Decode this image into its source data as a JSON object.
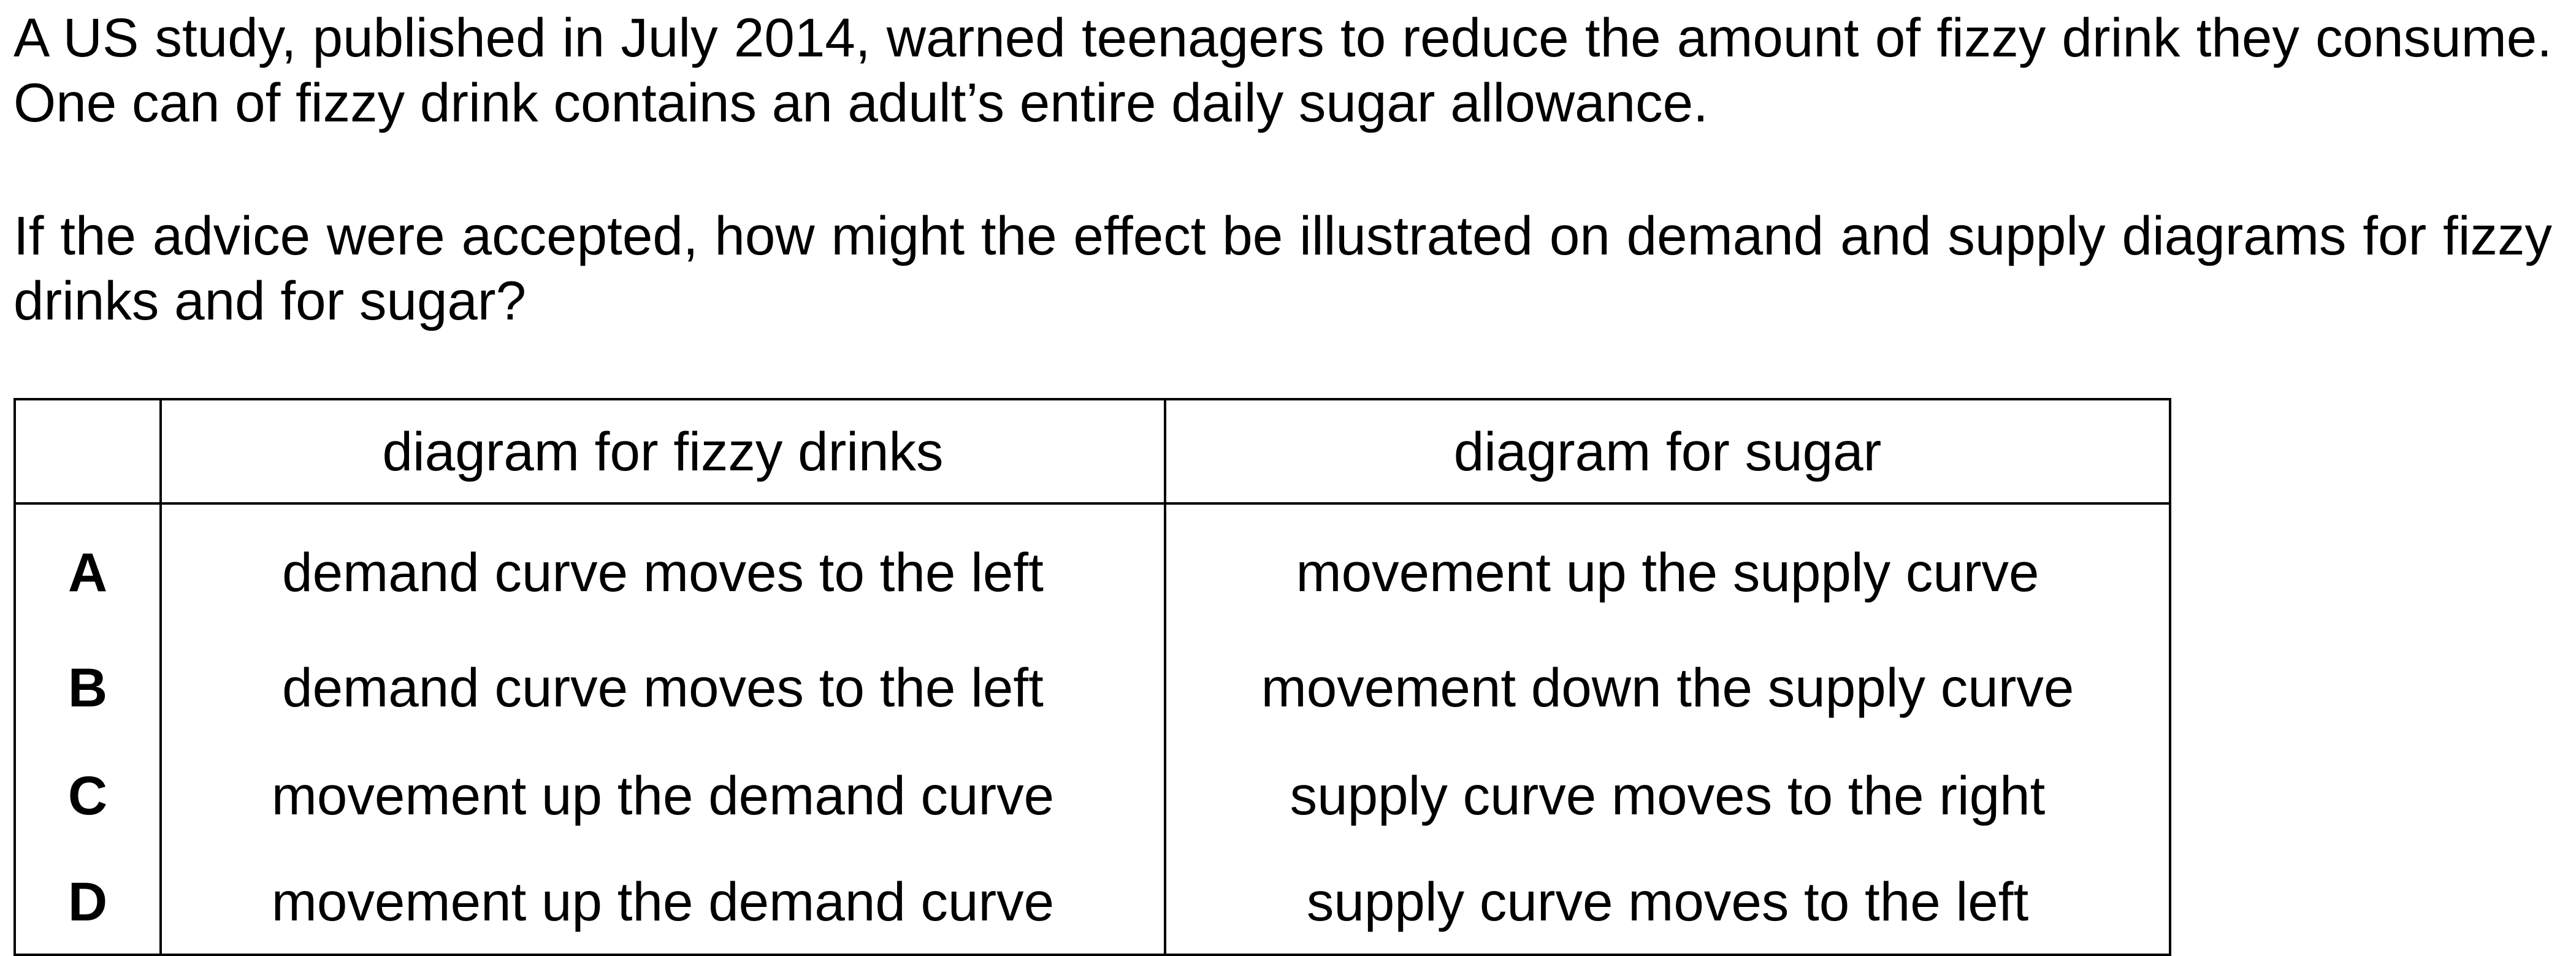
{
  "question": {
    "paragraph_1": "A US study, published in July 2014, warned teenagers to reduce the amount of fizzy drink they consume. One can of fizzy drink contains an adult’s entire daily sugar allowance.",
    "paragraph_2": "If the advice were accepted, how might the effect be illustrated on demand and supply diagrams for fizzy drinks and for sugar?"
  },
  "table": {
    "headers": [
      "",
      "diagram for fizzy drinks",
      "diagram for sugar"
    ],
    "rows": [
      {
        "letter": "A",
        "fizzy": "demand curve moves to the left",
        "sugar": "movement up the supply curve"
      },
      {
        "letter": "B",
        "fizzy": "demand curve moves to the left",
        "sugar": "movement down the supply curve"
      },
      {
        "letter": "C",
        "fizzy": "movement up the demand curve",
        "sugar": "supply curve moves to the right"
      },
      {
        "letter": "D",
        "fizzy": "movement up the demand curve",
        "sugar": "supply curve moves to the left"
      }
    ]
  }
}
